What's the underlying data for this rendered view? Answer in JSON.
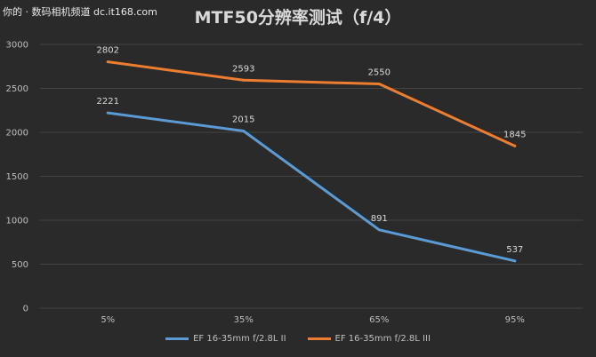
{
  "watermark": "你的 · 数码相机频道 dc.it168.com",
  "chart_data": {
    "type": "line",
    "title": "MTF50分辨率测试（f/4）",
    "categories": [
      "5%",
      "35%",
      "65%",
      "95%"
    ],
    "series": [
      {
        "name": "EF 16-35mm f/2.8L II",
        "values": [
          2221,
          2015,
          891,
          537
        ],
        "color": "#5b9bd5"
      },
      {
        "name": "EF 16-35mm f/2.8L III",
        "values": [
          2802,
          2593,
          2550,
          1845
        ],
        "color": "#ed7d31"
      }
    ],
    "ylim": [
      0,
      3000
    ],
    "yticks": [
      0,
      500,
      1000,
      1500,
      2000,
      2500,
      3000
    ],
    "grid": true,
    "legend_position": "bottom"
  }
}
